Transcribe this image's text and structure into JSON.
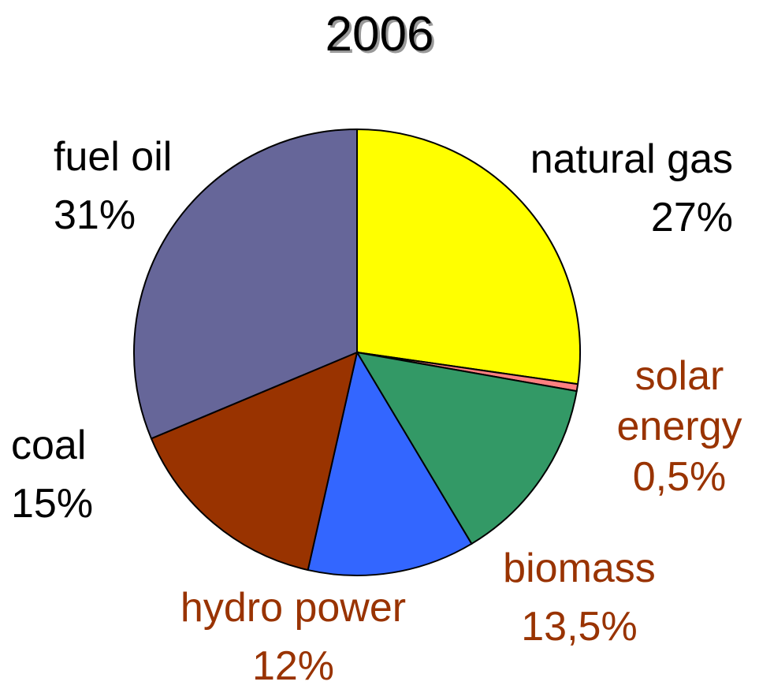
{
  "chart_data": {
    "type": "pie",
    "title": "2006",
    "categories": [
      "natural gas",
      "solar energy",
      "biomass",
      "hydro power",
      "coal",
      "fuel oil"
    ],
    "values": [
      27,
      0.5,
      13.5,
      12,
      15,
      31
    ],
    "value_labels": [
      "27%",
      "0,5%",
      "13,5%",
      "12%",
      "15%",
      "31%"
    ],
    "colors": [
      "#ffff00",
      "#ff8080",
      "#339966",
      "#3366ff",
      "#993300",
      "#666699"
    ],
    "label_colors": [
      "#000000",
      "#993300",
      "#993300",
      "#993300",
      "#000000",
      "#000000"
    ]
  }
}
